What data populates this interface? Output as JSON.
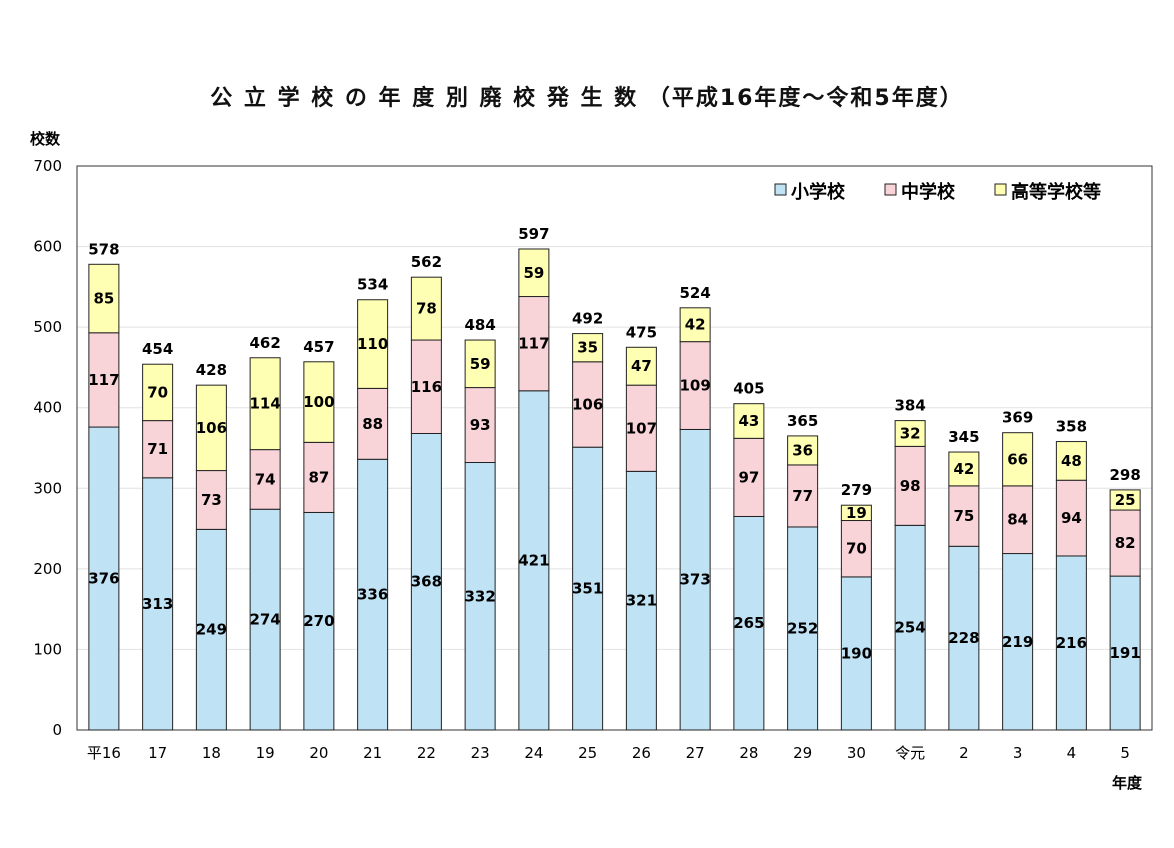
{
  "chart_data": {
    "type": "bar",
    "stacked": true,
    "title": "公 立 学 校 の 年 度 別 廃 校 発 生 数 （平成16年度～令和5年度）",
    "ylabel": "校数",
    "xlabel": "年度",
    "ylim": [
      0,
      700
    ],
    "yticks": [
      0,
      100,
      200,
      300,
      400,
      500,
      600,
      700
    ],
    "grid": true,
    "legend_position": "top-right",
    "categories": [
      "平16",
      "17",
      "18",
      "19",
      "20",
      "21",
      "22",
      "23",
      "24",
      "25",
      "26",
      "27",
      "28",
      "29",
      "30",
      "令元",
      "2",
      "3",
      "4",
      "5"
    ],
    "series": [
      {
        "name": "小学校",
        "color": "#bfe3f5",
        "values": [
          376,
          313,
          249,
          274,
          270,
          336,
          368,
          332,
          421,
          351,
          321,
          373,
          265,
          252,
          190,
          254,
          228,
          219,
          216,
          191
        ]
      },
      {
        "name": "中学校",
        "color": "#f8d3d8",
        "values": [
          117,
          71,
          73,
          74,
          87,
          88,
          116,
          93,
          117,
          106,
          107,
          109,
          97,
          77,
          70,
          98,
          75,
          84,
          94,
          82
        ]
      },
      {
        "name": "高等学校等",
        "color": "#ffffb3",
        "values": [
          85,
          70,
          106,
          114,
          100,
          110,
          78,
          59,
          59,
          35,
          47,
          42,
          43,
          36,
          19,
          32,
          42,
          66,
          48,
          25
        ]
      }
    ],
    "totals": [
      578,
      454,
      428,
      462,
      457,
      534,
      562,
      484,
      597,
      492,
      475,
      524,
      405,
      365,
      279,
      384,
      345,
      369,
      358,
      298
    ]
  }
}
